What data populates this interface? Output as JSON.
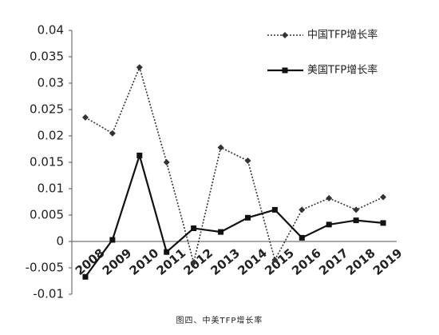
{
  "chart_data": {
    "type": "line",
    "caption": "图四、中美TFP增长率",
    "categories": [
      "2008",
      "2009",
      "2010",
      "2011",
      "2012",
      "2013",
      "2014",
      "2015",
      "2016",
      "2017",
      "2018",
      "2019"
    ],
    "series": [
      {
        "name": "中国TFP增长率",
        "color": "#333333",
        "dash": true,
        "marker": "diamond",
        "values": [
          0.0235,
          0.0205,
          0.033,
          0.015,
          -0.004,
          0.0178,
          0.0153,
          -0.0035,
          0.006,
          0.0082,
          0.006,
          0.0084
        ]
      },
      {
        "name": "美国TFP增长率",
        "color": "#111111",
        "dash": false,
        "marker": "square",
        "values": [
          -0.0067,
          0.0003,
          0.0163,
          -0.002,
          0.0025,
          0.0018,
          0.0045,
          0.006,
          0.0007,
          0.0032,
          0.004,
          0.0035
        ]
      }
    ],
    "ylim": [
      -0.01,
      0.04
    ],
    "yticks": [
      -0.01,
      -0.005,
      0,
      0.005,
      0.01,
      0.015,
      0.02,
      0.025,
      0.03,
      0.035,
      0.04
    ],
    "grid": false
  }
}
